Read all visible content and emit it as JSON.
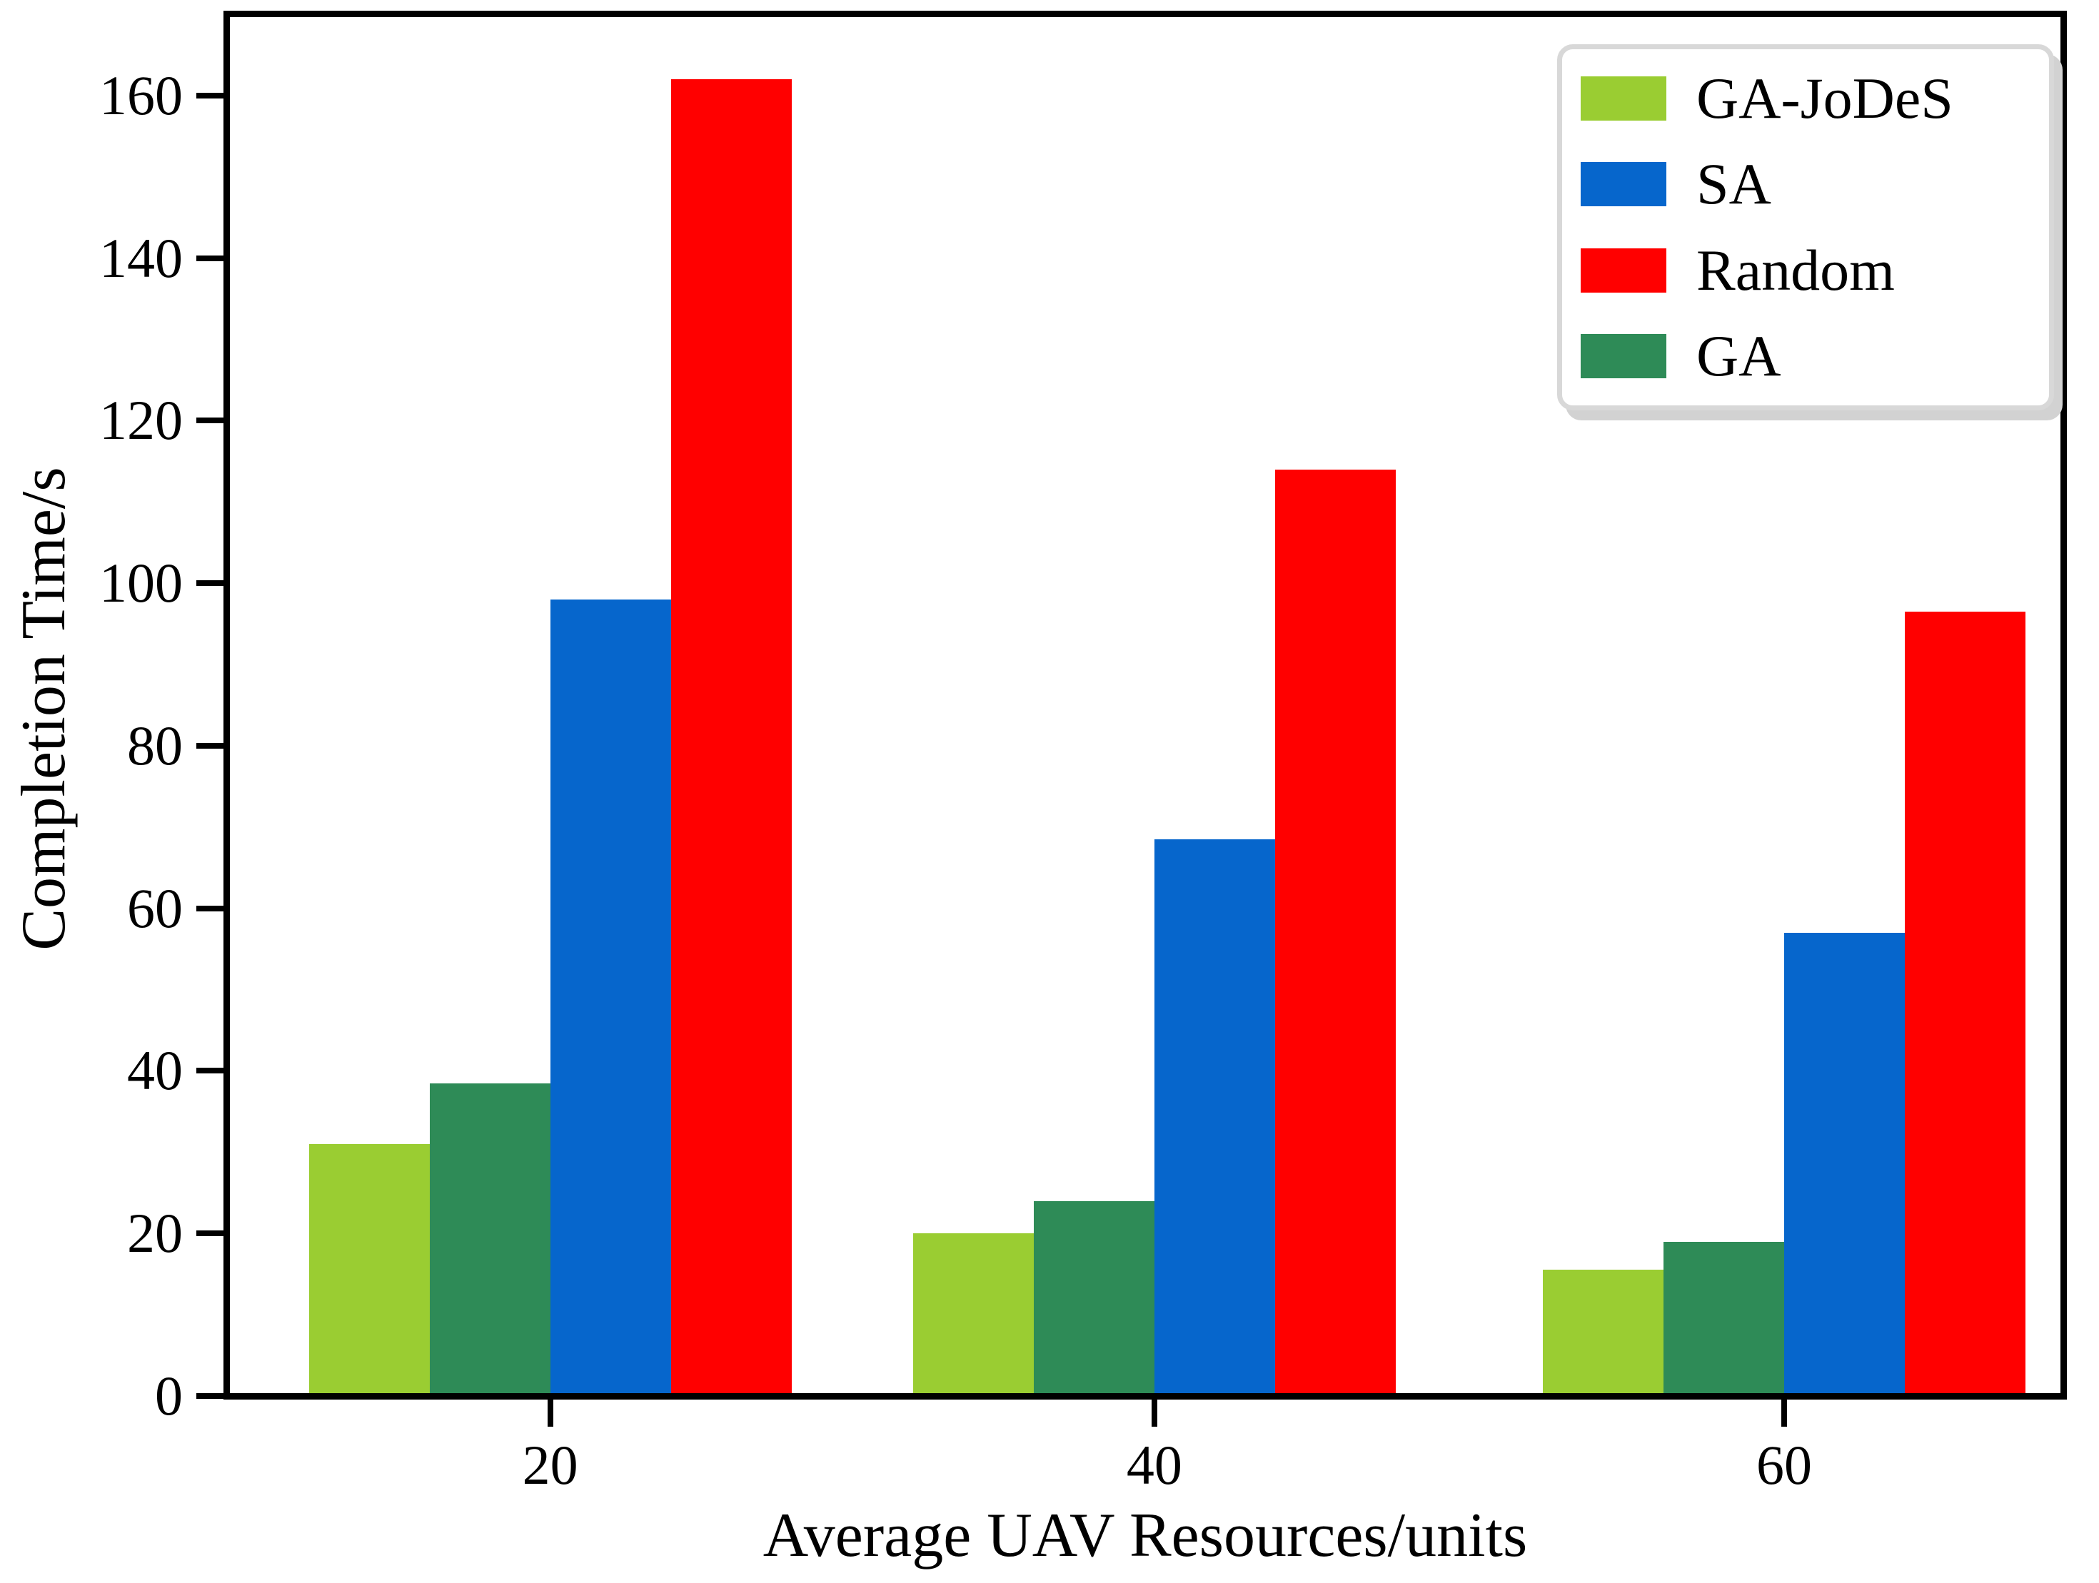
{
  "chart_data": {
    "type": "bar",
    "title": "",
    "xlabel": "Average UAV Resources/units",
    "ylabel": "Completion Time/s",
    "categories": [
      "20",
      "40",
      "60"
    ],
    "series": [
      {
        "name": "GA-JoDeS",
        "color": "#9ACD32",
        "values": [
          31,
          20,
          15.5
        ]
      },
      {
        "name": "SA",
        "color": "#0666CC",
        "values": [
          98,
          68.5,
          57
        ]
      },
      {
        "name": "Random",
        "color": "#FF0000",
        "values": [
          162,
          114,
          96.5
        ]
      },
      {
        "name": "GA",
        "color": "#2E8B57",
        "values": [
          38.5,
          24,
          19
        ]
      }
    ],
    "bar_order": [
      "GA-JoDeS",
      "GA",
      "SA",
      "Random"
    ],
    "legend_order": [
      "GA-JoDeS",
      "SA",
      "Random",
      "GA"
    ],
    "y_ticks": [
      0,
      20,
      40,
      60,
      80,
      100,
      120,
      140,
      160
    ],
    "ylim": [
      0,
      170
    ],
    "grid": false,
    "legend_position": "upper right",
    "axis_color": "#000000",
    "legend_border_color": "#d8d8d8",
    "layout": {
      "group_centers_frac": [
        0.176,
        0.505,
        0.848
      ],
      "bar_width_frac": 0.0657
    }
  }
}
